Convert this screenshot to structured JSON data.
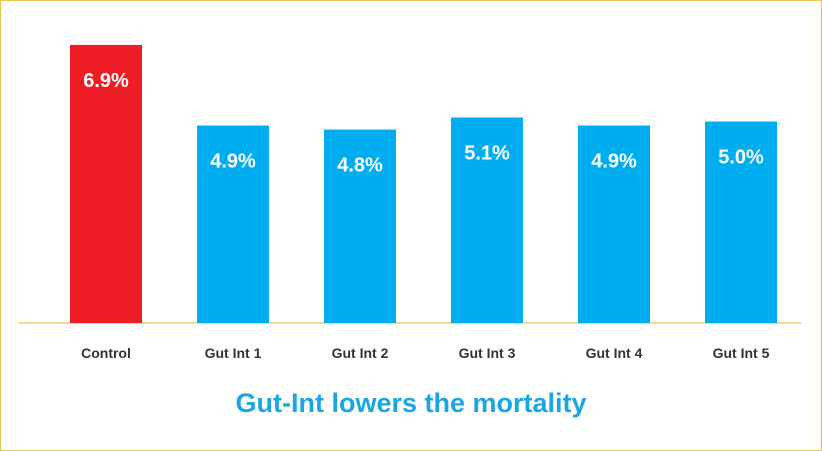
{
  "chart_data": {
    "type": "bar",
    "title": "Gut-Int lowers the mortality",
    "xlabel": "",
    "ylabel": "",
    "categories": [
      "Control",
      "Gut Int 1",
      "Gut Int 2",
      "Gut Int 3",
      "Gut Int 4",
      "Gut Int 5"
    ],
    "values": [
      6.9,
      4.9,
      4.8,
      5.1,
      4.9,
      5.0
    ],
    "value_labels": [
      "6.9%",
      "4.9%",
      "4.8%",
      "5.1%",
      "4.9%",
      "5.0%"
    ],
    "ylim": [
      0,
      7
    ],
    "grid": false,
    "legend": "none",
    "bar_colors": [
      "#ee1c25",
      "#00aeef",
      "#00aeef",
      "#00aeef",
      "#00aeef",
      "#00aeef"
    ],
    "baseline_color": "#e8c84a",
    "title_color": "#1aa6e0"
  }
}
